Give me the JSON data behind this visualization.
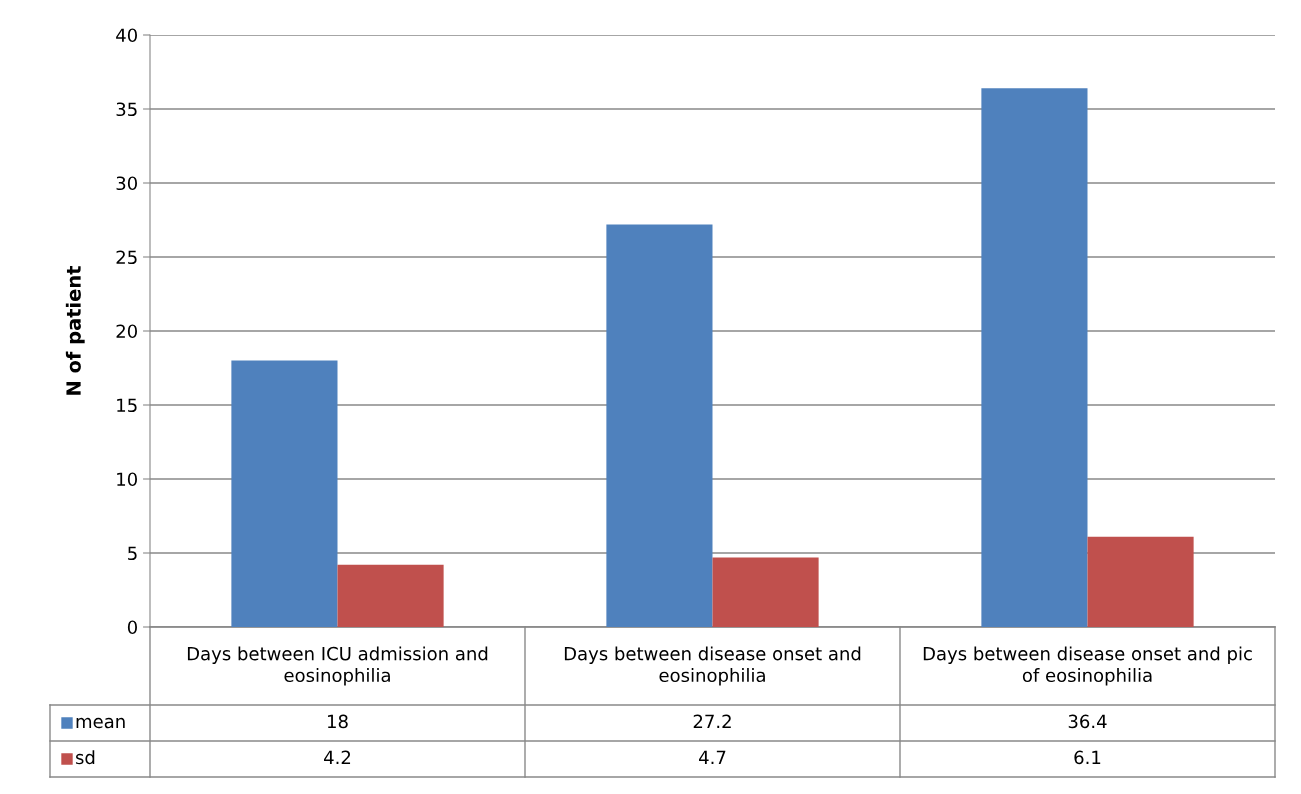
{
  "chart_data": {
    "type": "bar",
    "ylabel": "N of patient",
    "categories": [
      "Days between ICU admission and eosinophilia",
      "Days between disease onset and eosinophilia",
      "Days between disease onset and pic of eosinophilia"
    ],
    "series": [
      {
        "name": "mean",
        "color": "#4f81bd",
        "values": [
          18,
          27.2,
          36.4
        ]
      },
      {
        "name": "sd",
        "color": "#c0504d",
        "values": [
          4.2,
          4.7,
          6.1
        ]
      }
    ],
    "ylim": [
      0,
      40
    ],
    "yticks": [
      0,
      5,
      10,
      15,
      20,
      25,
      30,
      35,
      40
    ],
    "grid": "y",
    "legend": "bottom",
    "data_labels": true
  }
}
